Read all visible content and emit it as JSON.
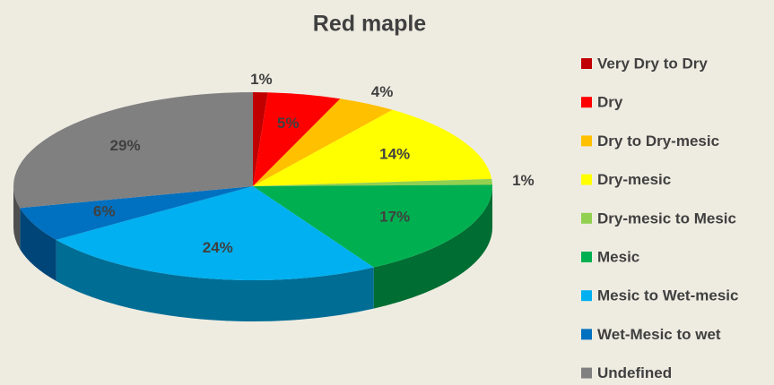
{
  "chart_data": {
    "type": "pie3d",
    "title": "Red maple",
    "categories": [
      "Very Dry to Dry",
      "Dry",
      "Dry to Dry-mesic",
      "Dry-mesic",
      "Dry-mesic to Mesic",
      "Mesic",
      "Mesic to Wet-mesic",
      "Wet-Mesic to wet",
      "Undefined"
    ],
    "values": [
      1,
      5,
      4,
      14,
      1,
      17,
      24,
      6,
      29
    ],
    "value_labels": [
      "1%",
      "5%",
      "4%",
      "14%",
      "1%",
      "17%",
      "24%",
      "6%",
      "29%"
    ],
    "colors": [
      "#c00000",
      "#ff0000",
      "#ffc000",
      "#ffff00",
      "#92d050",
      "#00b050",
      "#00b0f0",
      "#0070c0",
      "#808080"
    ],
    "legend": "right"
  }
}
